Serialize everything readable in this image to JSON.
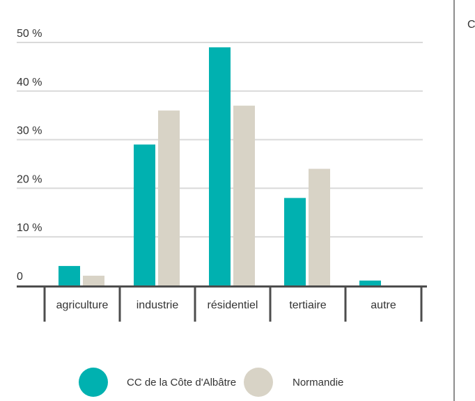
{
  "chart_data": {
    "type": "bar",
    "categories": [
      "agriculture",
      "industrie",
      "résidentiel",
      "tertiaire",
      "autre"
    ],
    "series": [
      {
        "name": "CC de la Côte d'Albâtre",
        "color": "#00b1b0",
        "values": [
          4,
          29,
          49,
          18,
          1
        ]
      },
      {
        "name": "Normandie",
        "color": "#d8d3c6",
        "values": [
          2,
          36,
          37,
          24,
          0
        ]
      }
    ],
    "yticks": [
      {
        "value": 0,
        "label": "0"
      },
      {
        "value": 10,
        "label": "10 %"
      },
      {
        "value": 20,
        "label": "20 %"
      },
      {
        "value": 30,
        "label": "30 %"
      },
      {
        "value": 40,
        "label": "40 %"
      },
      {
        "value": 50,
        "label": "50 %"
      }
    ],
    "ylim": [
      0,
      50
    ],
    "grid": true,
    "legend_position": "bottom",
    "colors": {
      "axis": "#4d4d4d",
      "grid": "#d9d9d9",
      "divider": "#8c8c8c"
    }
  },
  "side_label": "C"
}
